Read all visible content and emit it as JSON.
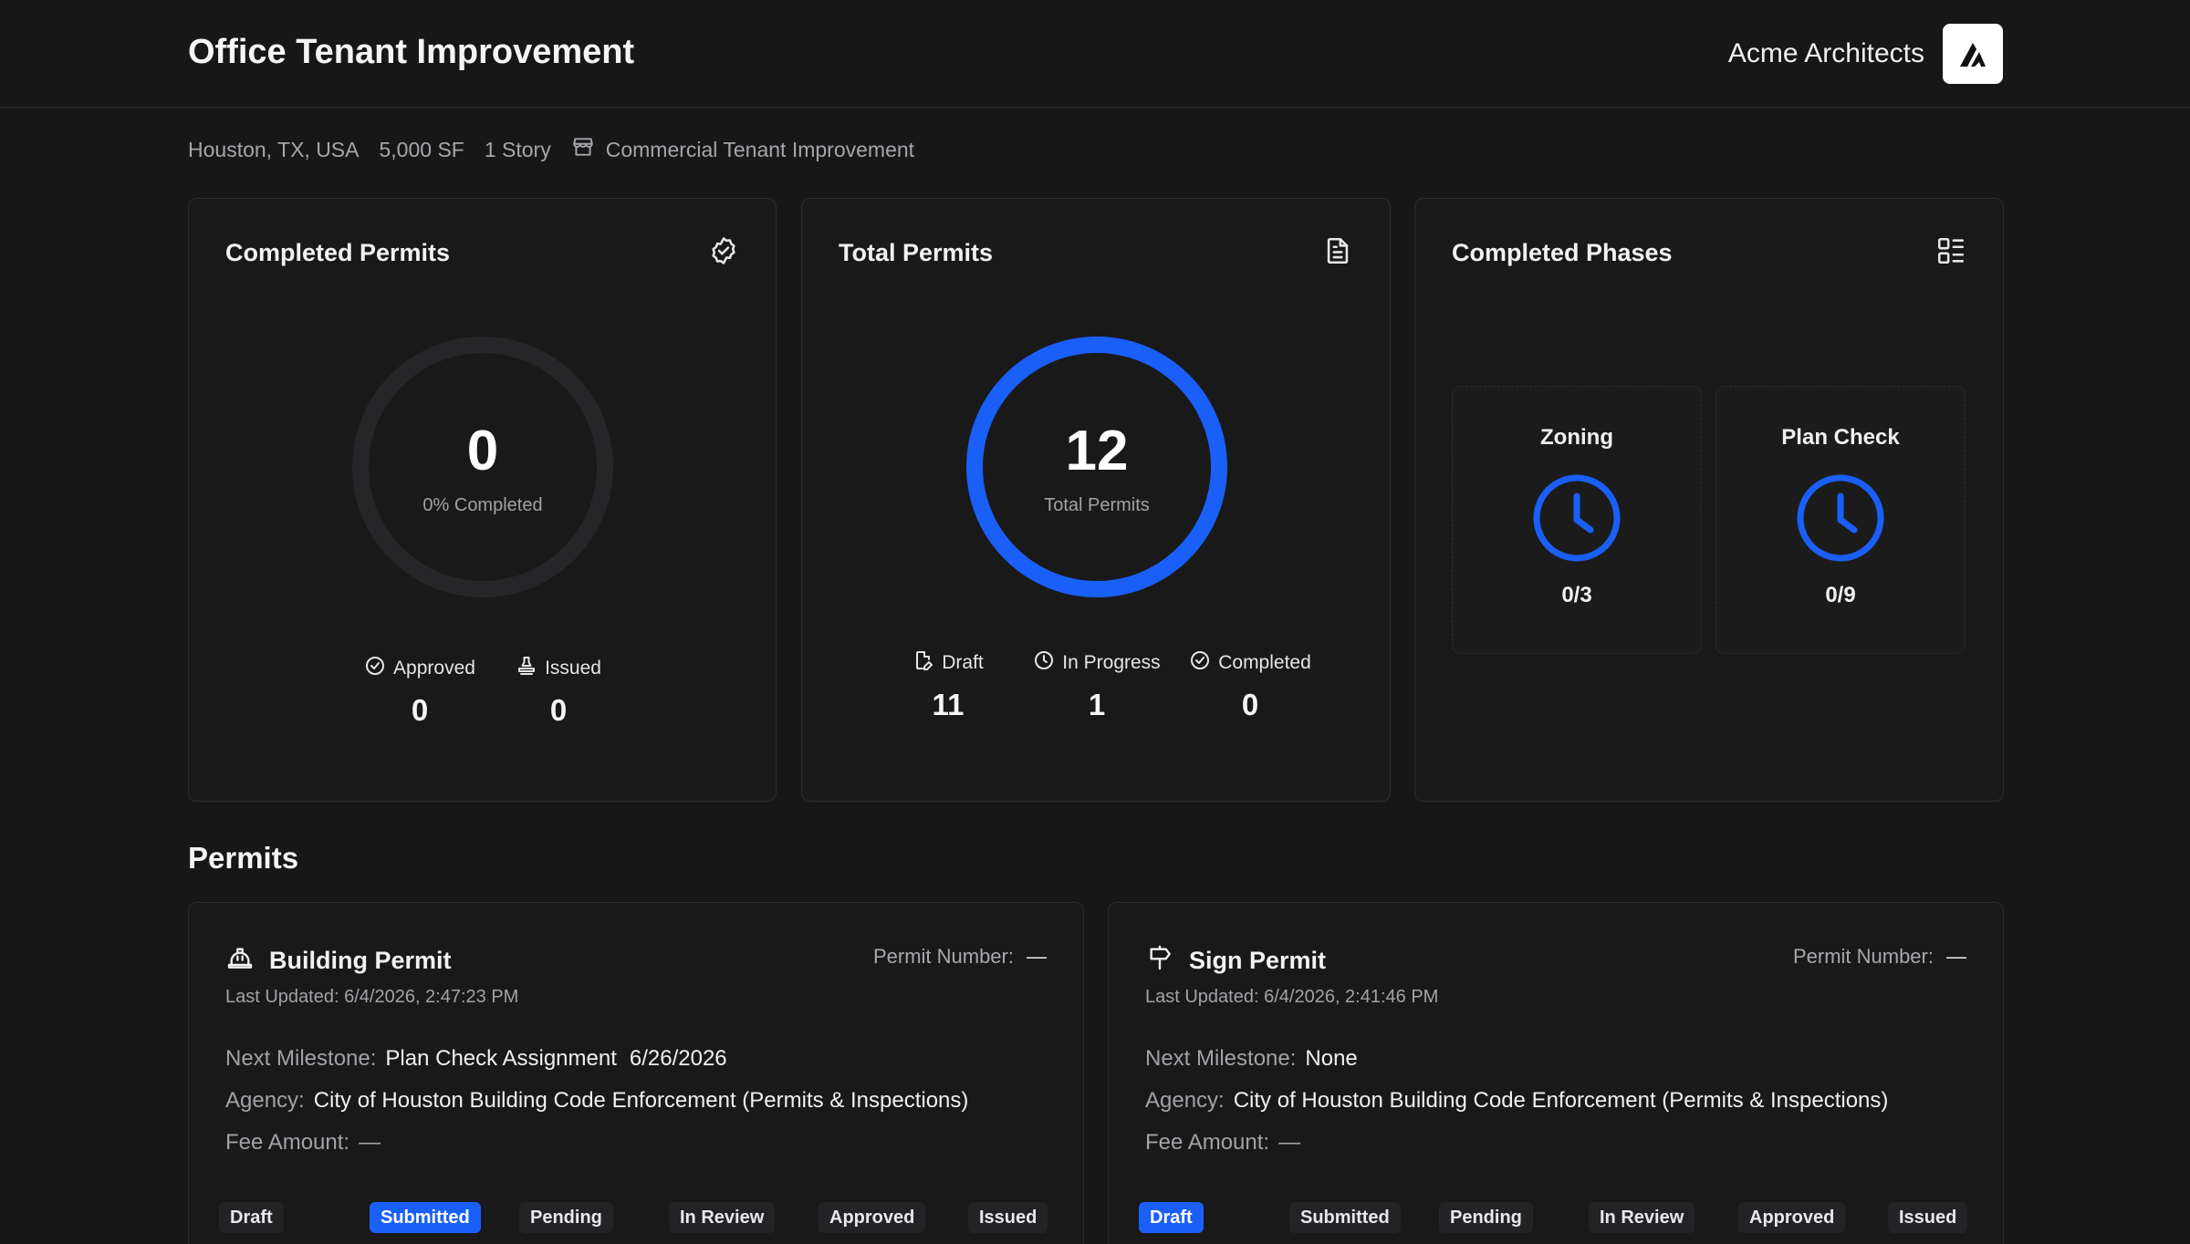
{
  "header": {
    "project_title": "Office Tenant Improvement",
    "org_name": "Acme Architects",
    "logo_icon": "acme-logo-icon"
  },
  "meta": {
    "location": "Houston, TX, USA",
    "area": "5,000 SF",
    "stories": "1 Story",
    "type": "Commercial Tenant Improvement",
    "type_icon": "storefront-icon"
  },
  "completed_permits": {
    "title": "Completed Permits",
    "value": "0",
    "subtitle": "0% Completed",
    "percent": 0,
    "approved_label": "Approved",
    "approved_value": "0",
    "issued_label": "Issued",
    "issued_value": "0"
  },
  "total_permits": {
    "title": "Total Permits",
    "value": "12",
    "subtitle": "Total Permits",
    "draft_label": "Draft",
    "draft_value": "11",
    "in_progress_label": "In Progress",
    "in_progress_value": "1",
    "completed_label": "Completed",
    "completed_value": "0"
  },
  "completed_phases": {
    "title": "Completed Phases",
    "phases": [
      {
        "name": "Zoning",
        "count": "0/3"
      },
      {
        "name": "Plan Check",
        "count": "0/9"
      }
    ]
  },
  "permits": {
    "section_title": "Permits",
    "permit_number_label": "Permit Number:",
    "last_updated_label": "Last Updated:",
    "next_milestone_label": "Next Milestone:",
    "agency_label": "Agency:",
    "fee_amount_label": "Fee Amount:",
    "items": [
      {
        "name": "Building Permit",
        "icon": "hard-hat-icon",
        "permit_number": "—",
        "last_updated": "6/4/2026, 2:47:23 PM",
        "next_milestone": "Plan Check Assignment",
        "next_milestone_date": "6/26/2026",
        "agency": "City of Houston Building Code Enforcement (Permits & Inspections)",
        "fee_amount": "—",
        "statuses": [
          "Draft",
          "Submitted",
          "Pending",
          "In Review",
          "Approved",
          "Issued"
        ],
        "active_status": "Submitted"
      },
      {
        "name": "Sign Permit",
        "icon": "signpost-icon",
        "permit_number": "—",
        "last_updated": "6/4/2026, 2:41:46 PM",
        "next_milestone": "None",
        "next_milestone_date": "",
        "agency": "City of Houston Building Code Enforcement (Permits & Inspections)",
        "fee_amount": "—",
        "statuses": [
          "Draft",
          "Submitted",
          "Pending",
          "In Review",
          "Approved",
          "Issued"
        ],
        "active_status": "Draft"
      }
    ]
  },
  "colors": {
    "accent": "#1a5ff7",
    "background": "#171718",
    "ring_track": "#262628"
  }
}
